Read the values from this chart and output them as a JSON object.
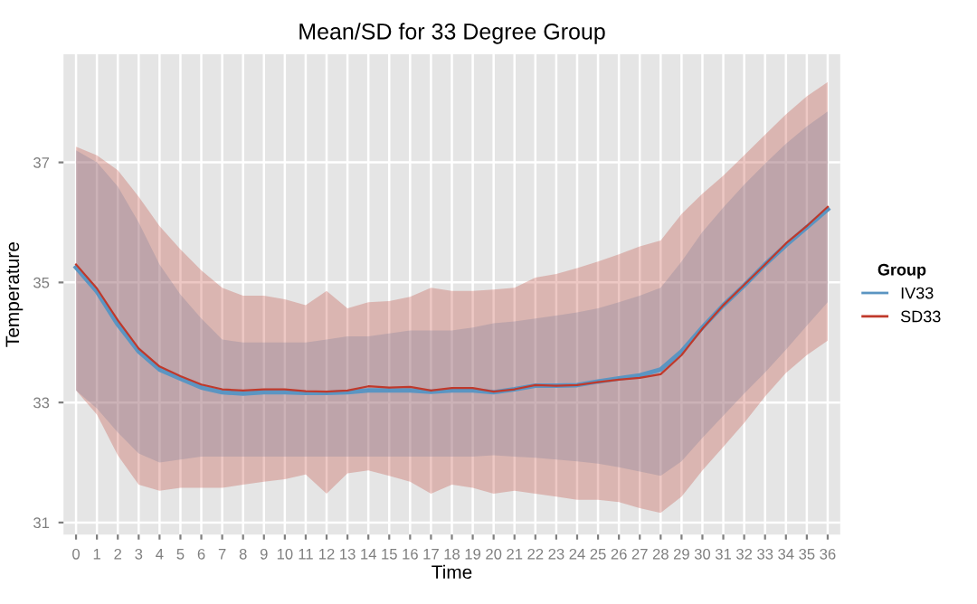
{
  "chart_data": {
    "type": "line",
    "title": "Mean/SD for 33 Degree Group",
    "xlabel": "Time",
    "ylabel": "Temperature",
    "legend_title": "Group",
    "legend": "right",
    "grid": true,
    "x": [
      0,
      1,
      2,
      3,
      4,
      5,
      6,
      7,
      8,
      9,
      10,
      11,
      12,
      13,
      14,
      15,
      16,
      17,
      18,
      19,
      20,
      21,
      22,
      23,
      24,
      25,
      26,
      27,
      28,
      29,
      30,
      31,
      32,
      33,
      34,
      35,
      36
    ],
    "xlim": [
      -0.6,
      36.6
    ],
    "xticks": [
      0,
      1,
      2,
      3,
      4,
      5,
      6,
      7,
      8,
      9,
      10,
      11,
      12,
      13,
      14,
      15,
      16,
      17,
      18,
      19,
      20,
      21,
      22,
      23,
      24,
      25,
      26,
      27,
      28,
      29,
      30,
      31,
      32,
      33,
      34,
      35,
      36
    ],
    "ylim": [
      30.8,
      38.8
    ],
    "yticks": [
      31,
      33,
      35,
      37
    ],
    "series": [
      {
        "name": "IV33",
        "color": "#5b95c2",
        "values": [
          35.25,
          34.85,
          34.3,
          33.85,
          33.55,
          33.4,
          33.25,
          33.17,
          33.15,
          33.17,
          33.17,
          33.16,
          33.16,
          33.17,
          33.2,
          33.2,
          33.2,
          33.18,
          33.2,
          33.2,
          33.17,
          33.22,
          33.28,
          33.28,
          33.29,
          33.35,
          33.4,
          33.45,
          33.55,
          33.85,
          34.25,
          34.62,
          34.95,
          35.3,
          35.62,
          35.92,
          36.22
        ],
        "lower": [
          33.2,
          32.9,
          32.5,
          32.15,
          32.0,
          32.05,
          32.1,
          32.1,
          32.1,
          32.1,
          32.1,
          32.1,
          32.1,
          32.1,
          32.1,
          32.1,
          32.1,
          32.1,
          32.1,
          32.1,
          32.12,
          32.1,
          32.08,
          32.05,
          32.02,
          31.98,
          31.92,
          31.85,
          31.78,
          32.02,
          32.41,
          32.78,
          33.15,
          33.5,
          33.88,
          34.28,
          34.67
        ],
        "upper": [
          37.2,
          37.0,
          36.6,
          36.0,
          35.3,
          34.8,
          34.4,
          34.05,
          34.0,
          34.0,
          34.0,
          34.0,
          34.05,
          34.1,
          34.1,
          34.15,
          34.2,
          34.2,
          34.2,
          34.25,
          34.32,
          34.35,
          34.4,
          34.45,
          34.5,
          34.57,
          34.67,
          34.78,
          34.91,
          35.35,
          35.84,
          36.25,
          36.63,
          36.98,
          37.31,
          37.6,
          37.85
        ]
      },
      {
        "name": "SD33",
        "color": "#c0392b",
        "values": [
          35.3,
          34.9,
          34.37,
          33.9,
          33.6,
          33.44,
          33.3,
          33.22,
          33.2,
          33.22,
          33.22,
          33.19,
          33.18,
          33.2,
          33.27,
          33.25,
          33.26,
          33.2,
          33.24,
          33.24,
          33.18,
          33.22,
          33.29,
          33.28,
          33.29,
          33.34,
          33.38,
          33.41,
          33.47,
          33.79,
          34.23,
          34.62,
          34.96,
          35.3,
          35.65,
          35.94,
          36.26
        ],
        "lower": [
          33.2,
          32.8,
          32.12,
          31.63,
          31.53,
          31.58,
          31.58,
          31.58,
          31.63,
          31.68,
          31.72,
          31.8,
          31.48,
          31.82,
          31.87,
          31.78,
          31.68,
          31.48,
          31.63,
          31.58,
          31.48,
          31.53,
          31.48,
          31.43,
          31.38,
          31.38,
          31.34,
          31.24,
          31.16,
          31.43,
          31.87,
          32.26,
          32.66,
          33.1,
          33.49,
          33.79,
          34.03
        ],
        "upper": [
          37.26,
          37.12,
          36.87,
          36.43,
          35.94,
          35.55,
          35.2,
          34.91,
          34.78,
          34.78,
          34.72,
          34.62,
          34.86,
          34.57,
          34.67,
          34.69,
          34.76,
          34.91,
          34.86,
          34.86,
          34.88,
          34.91,
          35.08,
          35.14,
          35.24,
          35.35,
          35.47,
          35.6,
          35.7,
          36.14,
          36.48,
          36.78,
          37.12,
          37.46,
          37.8,
          38.1,
          38.34
        ]
      }
    ]
  }
}
